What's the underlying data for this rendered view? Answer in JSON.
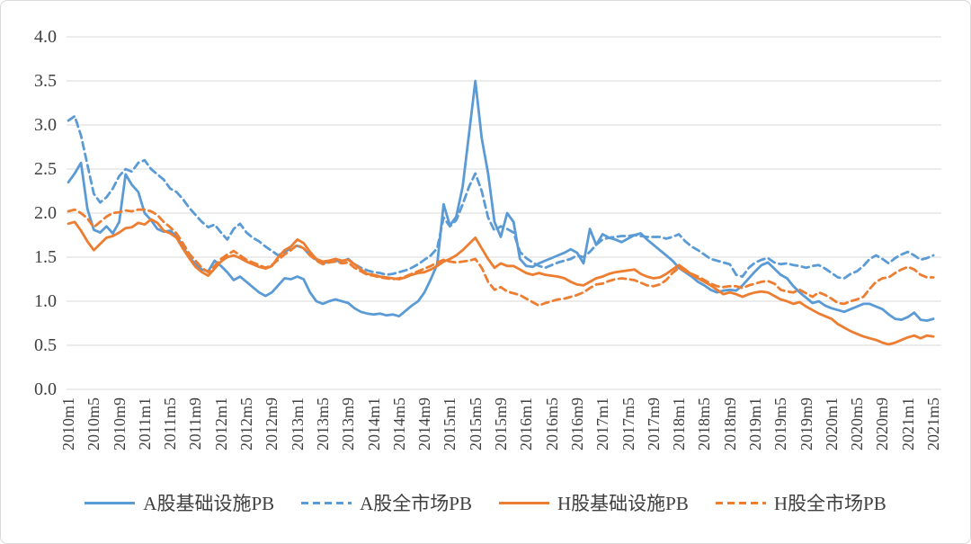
{
  "figure": {
    "background": "#ffffff",
    "border_color": "#d9d9d9",
    "text_color": "#3f3f3f",
    "grid_color": "#d9d9d9"
  },
  "chart_data": {
    "type": "line",
    "title": "",
    "xlabel": "",
    "ylabel": "",
    "frequency": "monthly",
    "x_start": "2010m1",
    "x_end": "2021m5",
    "n_points": 137,
    "ylim": [
      0.0,
      4.0
    ],
    "y_tick_step": 0.5,
    "grid": true,
    "legend_position": "bottom",
    "y_tick_labels": [
      "4.0",
      "3.5",
      "3.0",
      "2.5",
      "2.0",
      "1.5",
      "1.0",
      "0.5",
      "0.0"
    ],
    "x_tick_labels": [
      "2010m1",
      "2010m5",
      "2010m9",
      "2011m1",
      "2011m5",
      "2011m9",
      "2012m1",
      "2012m5",
      "2012m9",
      "2013m1",
      "2013m5",
      "2013m9",
      "2014m1",
      "2014m5",
      "2014m9",
      "2015m1",
      "2015m5",
      "2015m9",
      "2016m1",
      "2016m5",
      "2016m9",
      "2017m1",
      "2017m5",
      "2017m9",
      "2018m1",
      "2018m5",
      "2018m9",
      "2019m1",
      "2019m5",
      "2019m9",
      "2020m1",
      "2020m5",
      "2020m9",
      "2021m1",
      "2021m5"
    ],
    "x_tick_every_n_months": 4,
    "series": [
      {
        "name": "A股基础设施PB",
        "color": "#5B9BD5",
        "dash": "solid",
        "values": [
          2.35,
          2.45,
          2.57,
          2.05,
          1.81,
          1.78,
          1.85,
          1.77,
          1.9,
          2.44,
          2.32,
          2.24,
          2.0,
          1.92,
          1.82,
          1.79,
          1.8,
          1.74,
          1.62,
          1.5,
          1.42,
          1.36,
          1.34,
          1.46,
          1.4,
          1.33,
          1.24,
          1.28,
          1.22,
          1.16,
          1.1,
          1.06,
          1.1,
          1.18,
          1.26,
          1.25,
          1.28,
          1.25,
          1.1,
          1.0,
          0.97,
          1.0,
          1.02,
          1.0,
          0.98,
          0.92,
          0.88,
          0.86,
          0.85,
          0.86,
          0.84,
          0.85,
          0.83,
          0.89,
          0.95,
          1.0,
          1.1,
          1.25,
          1.42,
          2.1,
          1.86,
          1.96,
          2.3,
          2.9,
          3.5,
          2.85,
          2.45,
          1.9,
          1.73,
          2.0,
          1.9,
          1.48,
          1.4,
          1.39,
          1.43,
          1.46,
          1.49,
          1.52,
          1.55,
          1.59,
          1.55,
          1.43,
          1.82,
          1.64,
          1.76,
          1.72,
          1.7,
          1.67,
          1.71,
          1.75,
          1.77,
          1.7,
          1.64,
          1.58,
          1.52,
          1.46,
          1.38,
          1.33,
          1.28,
          1.22,
          1.18,
          1.13,
          1.1,
          1.12,
          1.13,
          1.12,
          1.18,
          1.26,
          1.34,
          1.41,
          1.44,
          1.37,
          1.3,
          1.26,
          1.17,
          1.1,
          1.04,
          0.98,
          1.0,
          0.95,
          0.92,
          0.9,
          0.88,
          0.91,
          0.94,
          0.97,
          0.97,
          0.94,
          0.91,
          0.85,
          0.8,
          0.79,
          0.82,
          0.87,
          0.79,
          0.78,
          0.8
        ]
      },
      {
        "name": "A股全市场PB",
        "color": "#5B9BD5",
        "dash": "dashed",
        "values": [
          3.05,
          3.1,
          2.88,
          2.55,
          2.22,
          2.12,
          2.18,
          2.28,
          2.42,
          2.5,
          2.47,
          2.57,
          2.6,
          2.5,
          2.44,
          2.38,
          2.28,
          2.24,
          2.16,
          2.06,
          1.98,
          1.9,
          1.84,
          1.87,
          1.78,
          1.7,
          1.82,
          1.88,
          1.78,
          1.72,
          1.68,
          1.62,
          1.57,
          1.52,
          1.56,
          1.6,
          1.63,
          1.6,
          1.52,
          1.47,
          1.43,
          1.45,
          1.46,
          1.45,
          1.48,
          1.42,
          1.38,
          1.35,
          1.33,
          1.32,
          1.3,
          1.31,
          1.33,
          1.35,
          1.38,
          1.42,
          1.47,
          1.52,
          1.6,
          1.95,
          1.85,
          1.92,
          2.1,
          2.3,
          2.45,
          2.25,
          1.95,
          1.8,
          1.85,
          1.82,
          1.78,
          1.56,
          1.49,
          1.44,
          1.4,
          1.38,
          1.41,
          1.44,
          1.46,
          1.48,
          1.52,
          1.5,
          1.56,
          1.64,
          1.7,
          1.72,
          1.73,
          1.74,
          1.74,
          1.75,
          1.74,
          1.73,
          1.73,
          1.73,
          1.71,
          1.73,
          1.76,
          1.68,
          1.62,
          1.58,
          1.53,
          1.48,
          1.46,
          1.44,
          1.42,
          1.3,
          1.28,
          1.38,
          1.44,
          1.47,
          1.49,
          1.44,
          1.42,
          1.43,
          1.41,
          1.4,
          1.38,
          1.4,
          1.41,
          1.37,
          1.32,
          1.27,
          1.26,
          1.31,
          1.34,
          1.4,
          1.48,
          1.52,
          1.48,
          1.43,
          1.49,
          1.53,
          1.56,
          1.52,
          1.47,
          1.49,
          1.52
        ]
      },
      {
        "name": "H股基础设施PB",
        "color": "#ED7D31",
        "dash": "solid",
        "values": [
          1.88,
          1.9,
          1.8,
          1.68,
          1.58,
          1.65,
          1.72,
          1.74,
          1.78,
          1.83,
          1.84,
          1.89,
          1.87,
          1.93,
          1.89,
          1.8,
          1.77,
          1.72,
          1.6,
          1.49,
          1.39,
          1.33,
          1.29,
          1.37,
          1.45,
          1.5,
          1.52,
          1.49,
          1.45,
          1.42,
          1.39,
          1.37,
          1.4,
          1.5,
          1.58,
          1.62,
          1.7,
          1.66,
          1.56,
          1.48,
          1.45,
          1.46,
          1.48,
          1.46,
          1.47,
          1.42,
          1.36,
          1.31,
          1.3,
          1.28,
          1.27,
          1.26,
          1.25,
          1.27,
          1.3,
          1.32,
          1.33,
          1.36,
          1.4,
          1.45,
          1.48,
          1.52,
          1.58,
          1.65,
          1.72,
          1.6,
          1.48,
          1.38,
          1.43,
          1.4,
          1.4,
          1.36,
          1.32,
          1.3,
          1.32,
          1.3,
          1.29,
          1.28,
          1.26,
          1.22,
          1.19,
          1.18,
          1.22,
          1.26,
          1.28,
          1.31,
          1.33,
          1.34,
          1.35,
          1.36,
          1.31,
          1.28,
          1.26,
          1.27,
          1.31,
          1.36,
          1.41,
          1.36,
          1.3,
          1.26,
          1.22,
          1.18,
          1.13,
          1.08,
          1.1,
          1.08,
          1.05,
          1.08,
          1.1,
          1.11,
          1.1,
          1.06,
          1.02,
          1.0,
          0.97,
          0.99,
          0.94,
          0.9,
          0.86,
          0.83,
          0.8,
          0.74,
          0.7,
          0.66,
          0.63,
          0.6,
          0.58,
          0.56,
          0.53,
          0.51,
          0.53,
          0.56,
          0.59,
          0.61,
          0.58,
          0.61,
          0.6
        ]
      },
      {
        "name": "H股全市场PB",
        "color": "#ED7D31",
        "dash": "dashed",
        "values": [
          2.02,
          2.04,
          2.0,
          1.94,
          1.84,
          1.9,
          1.96,
          2.0,
          2.01,
          2.03,
          2.02,
          2.04,
          2.04,
          2.02,
          1.98,
          1.9,
          1.84,
          1.77,
          1.66,
          1.54,
          1.46,
          1.38,
          1.33,
          1.4,
          1.48,
          1.53,
          1.57,
          1.52,
          1.47,
          1.44,
          1.41,
          1.38,
          1.41,
          1.47,
          1.53,
          1.58,
          1.64,
          1.6,
          1.52,
          1.46,
          1.42,
          1.44,
          1.45,
          1.43,
          1.44,
          1.38,
          1.34,
          1.3,
          1.29,
          1.27,
          1.26,
          1.25,
          1.26,
          1.28,
          1.31,
          1.34,
          1.37,
          1.4,
          1.44,
          1.47,
          1.45,
          1.44,
          1.45,
          1.46,
          1.48,
          1.38,
          1.22,
          1.13,
          1.16,
          1.11,
          1.09,
          1.07,
          1.03,
          0.99,
          0.95,
          0.98,
          1.0,
          1.02,
          1.03,
          1.05,
          1.07,
          1.1,
          1.15,
          1.19,
          1.2,
          1.23,
          1.25,
          1.26,
          1.25,
          1.24,
          1.21,
          1.18,
          1.17,
          1.19,
          1.24,
          1.32,
          1.38,
          1.34,
          1.31,
          1.28,
          1.24,
          1.2,
          1.17,
          1.16,
          1.17,
          1.17,
          1.15,
          1.18,
          1.2,
          1.22,
          1.23,
          1.2,
          1.13,
          1.11,
          1.1,
          1.13,
          1.09,
          1.05,
          1.1,
          1.07,
          1.03,
          0.98,
          0.97,
          1.0,
          1.02,
          1.05,
          1.14,
          1.22,
          1.26,
          1.27,
          1.32,
          1.36,
          1.39,
          1.36,
          1.3,
          1.27,
          1.27
        ]
      }
    ]
  }
}
